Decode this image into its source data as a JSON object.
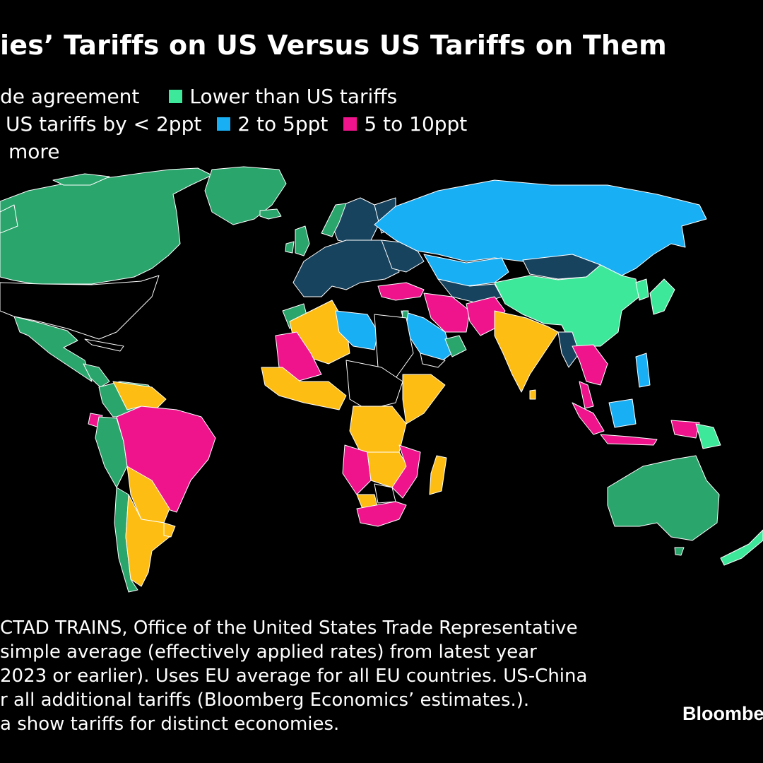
{
  "title": "ies’ Tariffs on US Versus US Tariffs on Them",
  "legend": {
    "row1": [
      {
        "label": "de agreement",
        "color": null
      },
      {
        "label": "Lower than US tariffs",
        "color": "#3ee89a"
      }
    ],
    "row2": [
      {
        "label": "US tariffs by < 2ppt",
        "color": null
      },
      {
        "label": "2 to 5ppt",
        "color": "#19aff5"
      },
      {
        "label": "5 to 10ppt",
        "color": "#f0148c"
      }
    ],
    "row3": [
      {
        "label": "more",
        "color": null
      }
    ]
  },
  "colors": {
    "free_trade": "#2aa56c",
    "lower": "#3ee89a",
    "lt2": "#18435e",
    "2to5": "#19aff5",
    "5to10": "#f0148c",
    "10plus": "#fdbd12",
    "other": "#000000"
  },
  "notes": [
    "CTAD TRAINS, Office of the United States Trade Representative",
    "simple average (effectively applied rates) from latest year",
    "2023 or earlier). Uses EU average for all EU countries. US-China",
    "r all additional tariffs (Bloomberg Economics’ estimates.).",
    "a show tariffs for distinct economies."
  ],
  "brand": "Bloomberg"
}
